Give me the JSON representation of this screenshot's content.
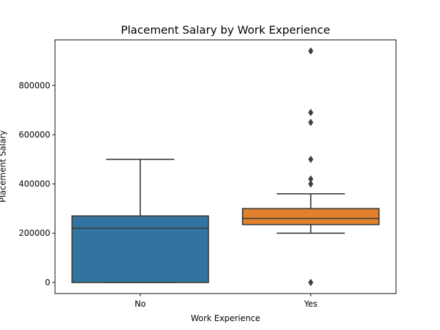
{
  "chart_data": {
    "type": "box",
    "title": "Placement Salary by Work Experience",
    "xlabel": "Work Experience",
    "ylabel": "Placement Salary",
    "categories": [
      "No",
      "Yes"
    ],
    "ylim": [
      -45000,
      985000
    ],
    "yticks": [
      0,
      200000,
      400000,
      600000,
      800000
    ],
    "ytick_labels": [
      "0",
      "200000",
      "400000",
      "600000",
      "800000"
    ],
    "grid": false,
    "boxes": [
      {
        "category": "No",
        "color": "#3274a1",
        "whisker_low": 0,
        "q1": 0,
        "median": 220000,
        "q3": 270000,
        "whisker_high": 500000,
        "outliers": []
      },
      {
        "category": "Yes",
        "color": "#e1812c",
        "whisker_low": 200000,
        "q1": 235000,
        "median": 260000,
        "q3": 300000,
        "whisker_high": 360000,
        "outliers": [
          0,
          400000,
          420000,
          500000,
          650000,
          690000,
          940000
        ]
      }
    ]
  }
}
